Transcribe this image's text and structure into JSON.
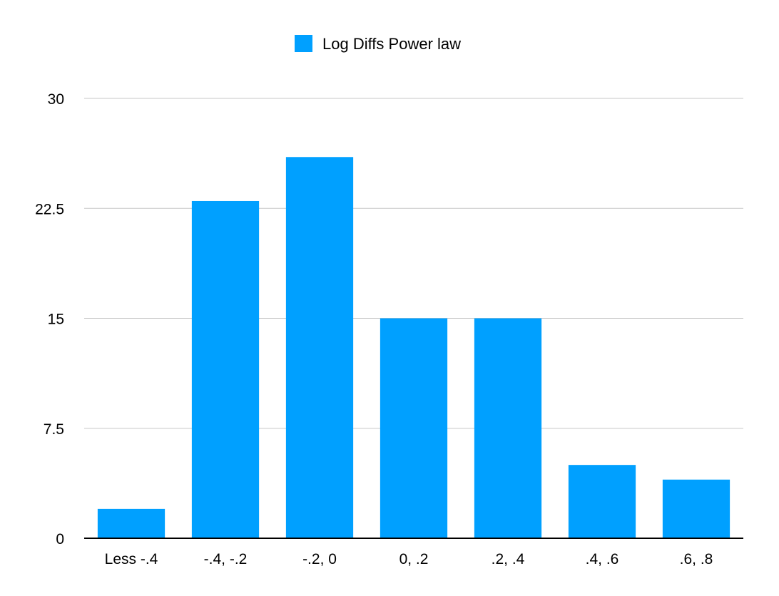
{
  "chart_data": {
    "type": "bar",
    "categories": [
      "Less -.4",
      "-.4, -.2",
      "-.2, 0",
      "0, .2",
      ".2, .4",
      ".4, .6",
      ".6, .8"
    ],
    "series": [
      {
        "name": "Log Diffs Power law",
        "values": [
          2,
          23,
          26,
          15,
          15,
          5,
          4
        ],
        "color": "#00a0ff"
      }
    ],
    "ylim": [
      0,
      30
    ],
    "yticks": [
      0,
      7.5,
      15,
      22.5,
      30
    ],
    "ytick_labels": [
      "0",
      "7.5",
      "15",
      "22.5",
      "30"
    ],
    "grid": true,
    "legend_position": "top-center",
    "title": "",
    "xlabel": "",
    "ylabel": ""
  }
}
